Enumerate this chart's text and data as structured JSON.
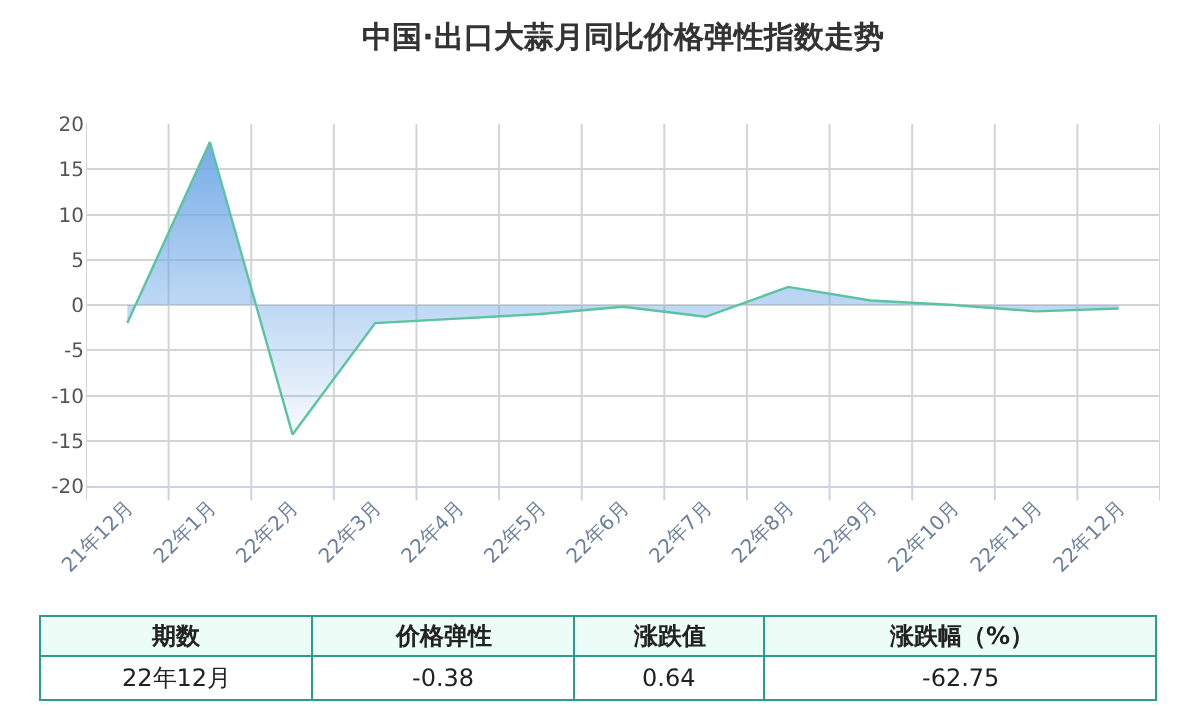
{
  "chart_data": [
    {
      "type": "area",
      "title": "中国·出口大蒜月同比价格弹性指数走势",
      "categories": [
        "21年12月",
        "22年1月",
        "22年2月",
        "22年3月",
        "22年4月",
        "22年5月",
        "22年6月",
        "22年7月",
        "22年8月",
        "22年9月",
        "22年10月",
        "22年11月",
        "22年12月"
      ],
      "series": [
        {
          "color": "#5cc3a0",
          "values": [
            -2,
            18,
            -14.3,
            -2,
            -1.5,
            -1,
            -0.2,
            -1.3,
            2,
            0.5,
            0,
            -0.7,
            -0.38
          ]
        }
      ],
      "ylim": [
        -20,
        20
      ],
      "yticks": [
        -20,
        -15,
        -10,
        -5,
        0,
        5,
        10,
        15,
        20
      ],
      "grid": true
    },
    {
      "type": "other",
      "categories": [
        "期数",
        "价格弹性",
        "涨跌值",
        "涨跌幅（%）"
      ],
      "value_labels": [
        "22年12月",
        "-0.38",
        "0.64",
        "-62.75"
      ]
    }
  ]
}
